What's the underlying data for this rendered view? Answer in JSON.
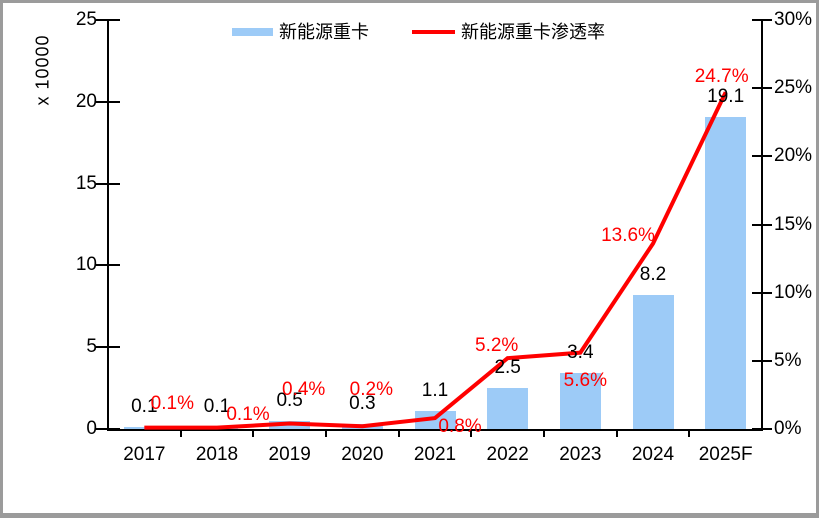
{
  "colors": {
    "bar": "#9dcbf7",
    "line": "#ff0000",
    "bar_label": "#000000",
    "line_label": "#ff0000",
    "axis": "#000000",
    "frame_border": "#9b9b9b",
    "background": "#ffffff"
  },
  "legend": {
    "items": [
      {
        "label": "新能源重卡",
        "marker": "bar-swatch"
      },
      {
        "label": "新能源重卡渗透率",
        "marker": "line-swatch"
      }
    ]
  },
  "chart_data": {
    "type": "bar+line",
    "categories": [
      "2017",
      "2018",
      "2019",
      "2020",
      "2021",
      "2022",
      "2023",
      "2024",
      "2025F"
    ],
    "series": [
      {
        "name": "新能源重卡",
        "type": "bar",
        "axis": "left",
        "values": [
          0.1,
          0.1,
          0.5,
          0.3,
          1.1,
          2.5,
          3.4,
          8.2,
          19.1
        ],
        "point_labels": [
          "0.1",
          "0.1",
          "0.5",
          "0.3",
          "1.1",
          "2.5",
          "3.4",
          "8.2",
          "19.1"
        ]
      },
      {
        "name": "新能源重卡渗透率",
        "type": "line",
        "axis": "right",
        "values": [
          0.1,
          0.1,
          0.4,
          0.2,
          0.8,
          5.2,
          5.6,
          13.6,
          24.7
        ],
        "point_labels": [
          "0.1%",
          "0.1%",
          "0.4%",
          "0.2%",
          "0.8%",
          "5.2%",
          "5.6%",
          "13.6%",
          "24.7%"
        ]
      }
    ],
    "left_axis": {
      "title": "x 10000",
      "min": 0,
      "max": 25,
      "tick_labels": [
        "25",
        "20",
        "15",
        "10",
        "5",
        "0"
      ]
    },
    "right_axis": {
      "min": 0,
      "max": 30,
      "tick_labels": [
        "30%",
        "25%",
        "20%",
        "15%",
        "10%",
        "5%",
        "0%"
      ]
    },
    "grid": "off",
    "legend_position": "top"
  }
}
